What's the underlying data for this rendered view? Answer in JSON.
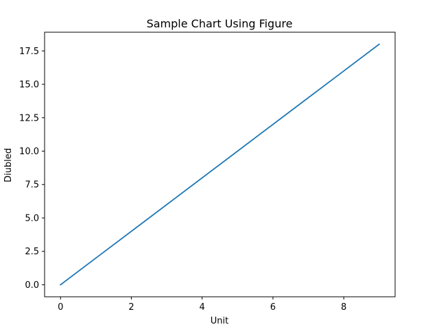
{
  "chart_data": {
    "type": "line",
    "title": "Sample Chart Using Figure",
    "xlabel": "Unit",
    "ylabel": "Diubled",
    "x": [
      0,
      1,
      2,
      3,
      4,
      5,
      6,
      7,
      8,
      9
    ],
    "series": [
      {
        "values": [
          0,
          2,
          4,
          6,
          8,
          10,
          12,
          14,
          16,
          18
        ],
        "color": "#1f77b4"
      }
    ],
    "xlim": [
      -0.45,
      9.45
    ],
    "ylim": [
      -0.9,
      18.9
    ],
    "x_ticks": [
      0,
      2,
      4,
      6,
      8
    ],
    "x_tick_labels": [
      "0",
      "2",
      "4",
      "6",
      "8"
    ],
    "y_ticks": [
      0,
      2.5,
      5,
      7.5,
      10,
      12.5,
      15,
      17.5
    ],
    "y_tick_labels": [
      "0.0",
      "2.5",
      "5.0",
      "7.5",
      "10.0",
      "12.5",
      "15.0",
      "17.5"
    ],
    "grid": false,
    "legend": "none"
  }
}
